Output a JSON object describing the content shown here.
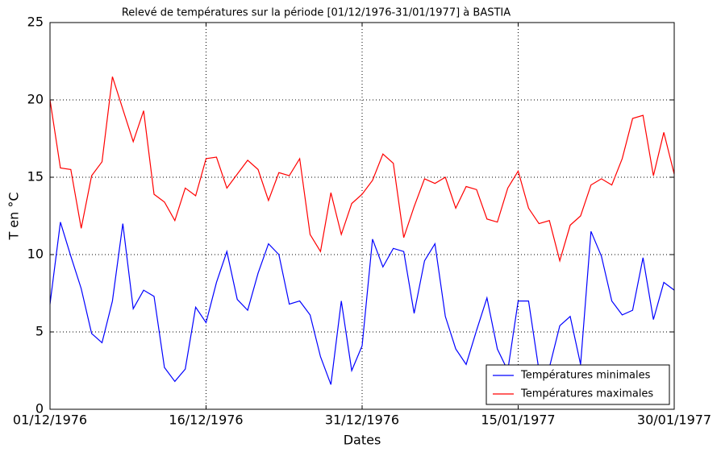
{
  "chart_data": {
    "type": "line",
    "title": "Relevé de températures sur la période [01/12/1976-31/01/1977] à BASTIA",
    "xlabel": "Dates",
    "ylabel": "T en °C",
    "x": [
      "1976-12-01",
      "1976-12-02",
      "1976-12-03",
      "1976-12-04",
      "1976-12-05",
      "1976-12-06",
      "1976-12-07",
      "1976-12-08",
      "1976-12-09",
      "1976-12-10",
      "1976-12-11",
      "1976-12-12",
      "1976-12-13",
      "1976-12-14",
      "1976-12-15",
      "1976-12-16",
      "1976-12-17",
      "1976-12-18",
      "1976-12-19",
      "1976-12-20",
      "1976-12-21",
      "1976-12-22",
      "1976-12-23",
      "1976-12-24",
      "1976-12-25",
      "1976-12-26",
      "1976-12-27",
      "1976-12-28",
      "1976-12-29",
      "1976-12-30",
      "1976-12-31",
      "1977-01-01",
      "1977-01-02",
      "1977-01-03",
      "1977-01-04",
      "1977-01-05",
      "1977-01-06",
      "1977-01-07",
      "1977-01-08",
      "1977-01-09",
      "1977-01-10",
      "1977-01-11",
      "1977-01-12",
      "1977-01-13",
      "1977-01-14",
      "1977-01-15",
      "1977-01-16",
      "1977-01-17",
      "1977-01-18",
      "1977-01-19",
      "1977-01-20",
      "1977-01-21",
      "1977-01-22",
      "1977-01-23",
      "1977-01-24",
      "1977-01-25",
      "1977-01-26",
      "1977-01-27",
      "1977-01-28",
      "1977-01-29",
      "1977-01-30"
    ],
    "series": [
      {
        "name": "Températures minimales",
        "color": "#0000ff",
        "values": [
          6.8,
          12.1,
          9.9,
          7.8,
          4.9,
          4.3,
          7.0,
          12.0,
          6.5,
          7.7,
          7.3,
          2.7,
          1.8,
          2.6,
          6.6,
          5.6,
          8.2,
          10.2,
          7.1,
          6.4,
          8.8,
          10.7,
          10.0,
          6.8,
          7.0,
          6.1,
          3.4,
          1.6,
          7.0,
          2.5,
          4.1,
          11.0,
          9.2,
          10.4,
          10.2,
          6.2,
          9.6,
          10.7,
          6.0,
          3.9,
          2.9,
          5.1,
          7.2,
          3.9,
          2.5,
          7.0,
          7.0,
          2.5,
          2.7,
          5.4,
          6.0,
          2.9,
          11.5,
          9.9,
          7.0,
          6.1,
          6.4,
          9.8,
          5.8,
          8.2,
          7.7
        ]
      },
      {
        "name": "Températures maximales",
        "color": "#ff0000",
        "values": [
          20.0,
          15.6,
          15.5,
          11.7,
          15.1,
          16.0,
          21.5,
          19.4,
          17.3,
          19.3,
          13.9,
          13.4,
          12.2,
          14.3,
          13.8,
          16.2,
          16.3,
          14.3,
          15.2,
          16.1,
          15.5,
          13.5,
          15.3,
          15.1,
          16.2,
          11.3,
          10.2,
          14.0,
          11.3,
          13.3,
          13.9,
          14.8,
          16.5,
          15.9,
          11.1,
          13.1,
          14.9,
          14.6,
          15.0,
          13.0,
          14.4,
          14.2,
          12.3,
          12.1,
          14.3,
          15.4,
          13.0,
          12.0,
          12.2,
          9.6,
          11.9,
          12.5,
          14.5,
          14.9,
          14.5,
          16.2,
          18.8,
          19.0,
          15.1,
          17.9,
          15.2
        ]
      }
    ],
    "xlim": [
      "1976-12-01",
      "1977-01-30"
    ],
    "xticks": [
      {
        "value": "1976-12-01",
        "label": "01/12/1976"
      },
      {
        "value": "1976-12-16",
        "label": "16/12/1976"
      },
      {
        "value": "1976-12-31",
        "label": "31/12/1976"
      },
      {
        "value": "1977-01-15",
        "label": "15/01/1977"
      },
      {
        "value": "1977-01-30",
        "label": "30/01/1977"
      }
    ],
    "ylim": [
      0,
      25
    ],
    "yticks": [
      0,
      5,
      10,
      15,
      20,
      25
    ],
    "grid": true,
    "legend": "lower right"
  }
}
